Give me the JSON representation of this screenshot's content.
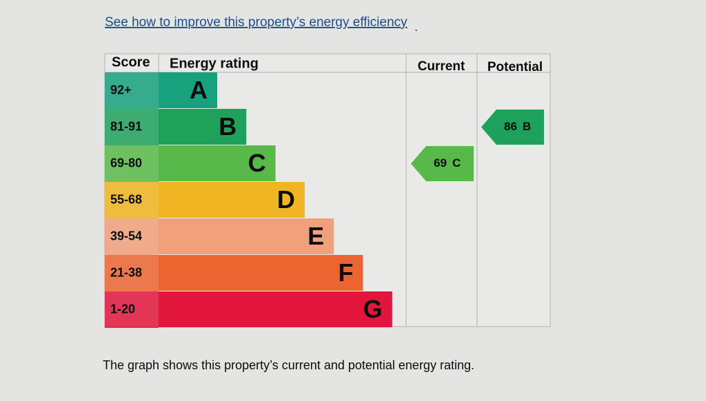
{
  "link": {
    "text": "See how to improve this property’s energy efficiency",
    "trail": "."
  },
  "table": {
    "headers": {
      "score": "Score",
      "rating": "Energy rating",
      "current": "Current",
      "potential": "Potential"
    },
    "bands": [
      {
        "range": "92+",
        "letter": "A",
        "color": "#17a17c"
      },
      {
        "range": "81-91",
        "letter": "B",
        "color": "#1ea15a"
      },
      {
        "range": "69-80",
        "letter": "C",
        "color": "#58b849"
      },
      {
        "range": "55-68",
        "letter": "D",
        "color": "#efb522"
      },
      {
        "range": "39-54",
        "letter": "E",
        "color": "#f0a07a"
      },
      {
        "range": "21-38",
        "letter": "F",
        "color": "#ec6531"
      },
      {
        "range": "1-20",
        "letter": "G",
        "color": "#e2153c"
      }
    ],
    "current": {
      "score": 69,
      "letter": "C"
    },
    "potential": {
      "score": 86,
      "letter": "B"
    }
  },
  "caption": "The graph shows this property’s current and potential energy rating."
}
